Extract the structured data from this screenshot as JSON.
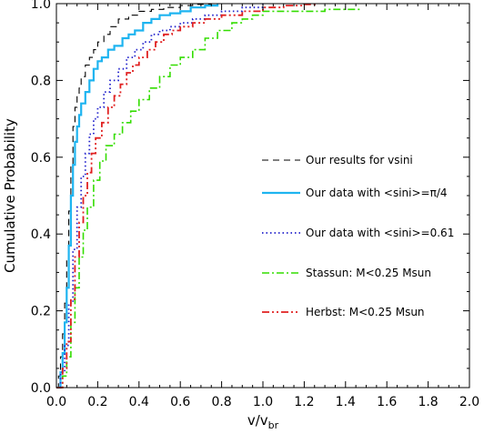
{
  "chart_data": {
    "type": "line",
    "title": "",
    "xlabel": "v/v",
    "xlabel_subscript": "br",
    "ylabel": "Cumulative Probability",
    "xlim": [
      0.0,
      2.0
    ],
    "ylim": [
      0.0,
      1.0
    ],
    "x_ticks": [
      0.0,
      0.2,
      0.4,
      0.6,
      0.8,
      1.0,
      1.2,
      1.4,
      1.6,
      1.8,
      2.0
    ],
    "x_tick_labels": [
      "0.0",
      "0.2",
      "0.4",
      "0.6",
      "0.8",
      "1.0",
      "1.2",
      "1.4",
      "1.6",
      "1.8",
      "2.0"
    ],
    "y_ticks": [
      0.0,
      0.2,
      0.4,
      0.6,
      0.8,
      1.0
    ],
    "y_tick_labels": [
      "0.0",
      "0.2",
      "0.4",
      "0.6",
      "0.8",
      "1.0"
    ],
    "grid": false,
    "legend_position": "right",
    "series": [
      {
        "name": "Our results for vsini",
        "color": "#000000",
        "style": "dashed",
        "x": [
          0.0,
          0.01,
          0.02,
          0.03,
          0.04,
          0.05,
          0.06,
          0.07,
          0.08,
          0.09,
          0.1,
          0.11,
          0.12,
          0.14,
          0.16,
          0.18,
          0.2,
          0.23,
          0.26,
          0.3,
          0.35,
          0.4,
          0.46,
          0.52,
          0.6,
          0.66,
          0.75
        ],
        "y": [
          0.0,
          0.03,
          0.08,
          0.14,
          0.22,
          0.33,
          0.46,
          0.58,
          0.68,
          0.73,
          0.76,
          0.78,
          0.81,
          0.84,
          0.86,
          0.88,
          0.9,
          0.92,
          0.94,
          0.96,
          0.97,
          0.98,
          0.985,
          0.99,
          0.995,
          0.998,
          1.0
        ]
      },
      {
        "name": "Our data with <sini>=π/4",
        "color": "#1eb4f0",
        "style": "solid",
        "x": [
          0.0,
          0.02,
          0.03,
          0.04,
          0.05,
          0.06,
          0.07,
          0.08,
          0.09,
          0.1,
          0.11,
          0.12,
          0.14,
          0.16,
          0.18,
          0.2,
          0.22,
          0.25,
          0.28,
          0.32,
          0.35,
          0.38,
          0.42,
          0.46,
          0.5,
          0.55,
          0.6,
          0.65,
          0.72,
          0.78
        ],
        "y": [
          0.0,
          0.04,
          0.09,
          0.17,
          0.26,
          0.37,
          0.5,
          0.58,
          0.64,
          0.68,
          0.71,
          0.74,
          0.77,
          0.8,
          0.83,
          0.85,
          0.86,
          0.88,
          0.89,
          0.91,
          0.92,
          0.93,
          0.95,
          0.96,
          0.97,
          0.975,
          0.98,
          0.99,
          0.995,
          1.0
        ]
      },
      {
        "name": "Our data with <sini>=0.61",
        "color": "#2222cc",
        "style": "dotted",
        "x": [
          0.0,
          0.02,
          0.04,
          0.06,
          0.08,
          0.1,
          0.12,
          0.14,
          0.16,
          0.18,
          0.2,
          0.23,
          0.26,
          0.3,
          0.34,
          0.38,
          0.42,
          0.46,
          0.5,
          0.55,
          0.6,
          0.66,
          0.72,
          0.8,
          0.9,
          1.0
        ],
        "y": [
          0.0,
          0.04,
          0.11,
          0.22,
          0.36,
          0.47,
          0.55,
          0.61,
          0.66,
          0.7,
          0.73,
          0.77,
          0.8,
          0.83,
          0.86,
          0.88,
          0.9,
          0.92,
          0.93,
          0.94,
          0.95,
          0.96,
          0.97,
          0.98,
          0.99,
          1.0
        ]
      },
      {
        "name": "Stassun: M<0.25 Msun",
        "color": "#33dd00",
        "style": "dash-dot",
        "x": [
          0.0,
          0.03,
          0.05,
          0.07,
          0.09,
          0.11,
          0.13,
          0.15,
          0.18,
          0.21,
          0.24,
          0.28,
          0.32,
          0.36,
          0.4,
          0.45,
          0.5,
          0.55,
          0.6,
          0.66,
          0.72,
          0.78,
          0.85,
          0.9,
          0.95,
          1.0,
          1.1,
          1.2,
          1.3,
          1.47
        ],
        "y": [
          0.0,
          0.03,
          0.08,
          0.17,
          0.26,
          0.34,
          0.41,
          0.47,
          0.54,
          0.59,
          0.63,
          0.66,
          0.69,
          0.72,
          0.75,
          0.78,
          0.81,
          0.84,
          0.86,
          0.88,
          0.91,
          0.93,
          0.95,
          0.96,
          0.97,
          0.98,
          0.98,
          0.98,
          0.985,
          0.985
        ]
      },
      {
        "name": "Herbst: M<0.25 Msun",
        "color": "#e02020",
        "style": "dash-dot-dot",
        "x": [
          0.0,
          0.03,
          0.05,
          0.07,
          0.09,
          0.11,
          0.13,
          0.15,
          0.17,
          0.19,
          0.22,
          0.25,
          0.28,
          0.31,
          0.34,
          0.37,
          0.4,
          0.44,
          0.48,
          0.52,
          0.56,
          0.6,
          0.66,
          0.72,
          0.8,
          0.9,
          1.0,
          1.1,
          1.2,
          1.26
        ],
        "y": [
          0.0,
          0.05,
          0.12,
          0.23,
          0.34,
          0.43,
          0.5,
          0.56,
          0.61,
          0.65,
          0.69,
          0.73,
          0.76,
          0.79,
          0.82,
          0.84,
          0.86,
          0.88,
          0.9,
          0.92,
          0.93,
          0.94,
          0.95,
          0.96,
          0.97,
          0.98,
          0.99,
          0.995,
          0.998,
          1.0
        ]
      }
    ]
  }
}
